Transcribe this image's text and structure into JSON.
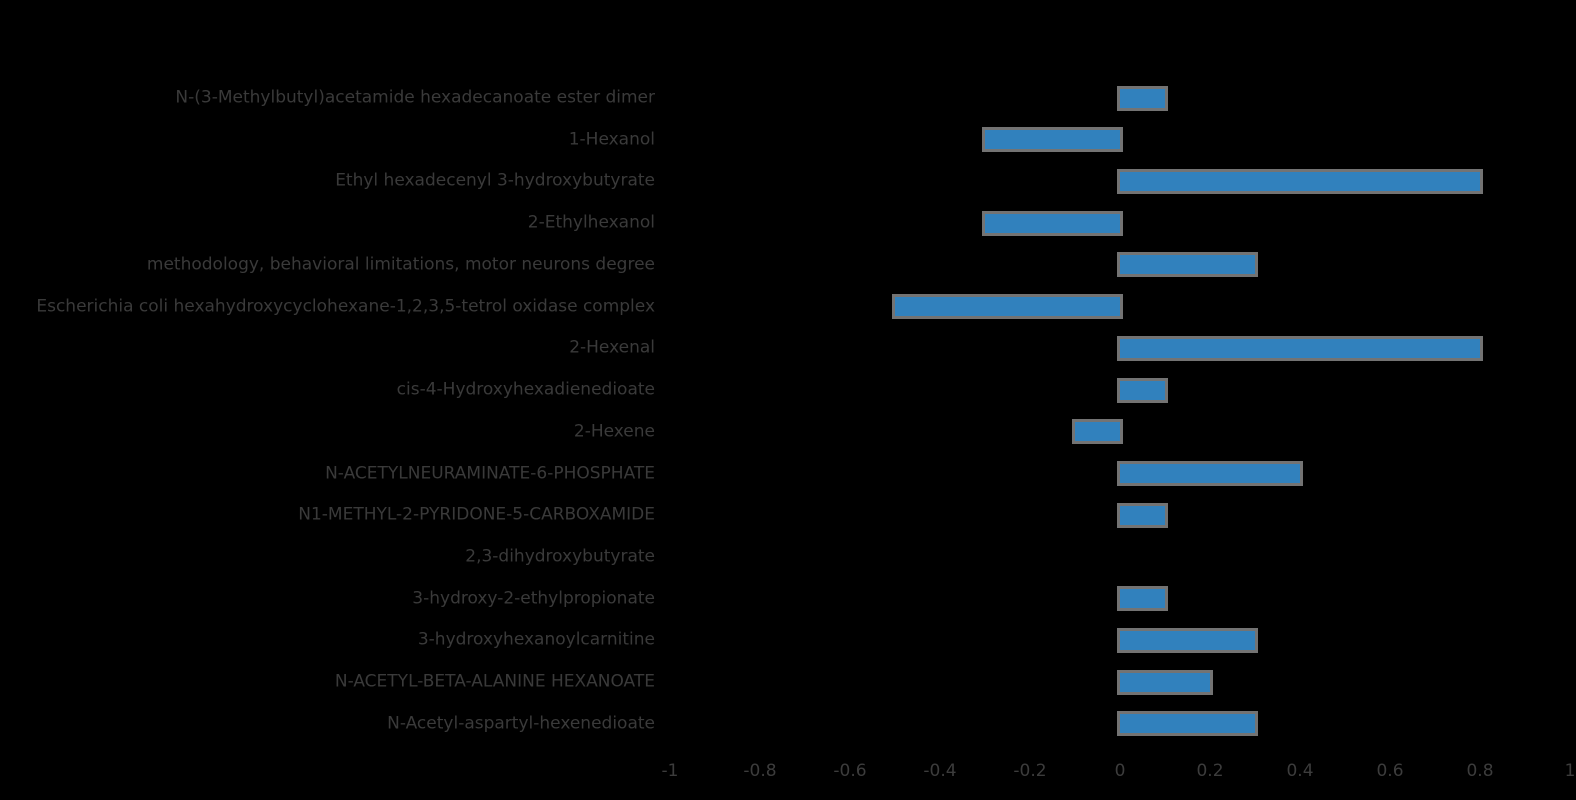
{
  "colors": {
    "background": "#000000",
    "bar_fill": "#3181bd",
    "bar_edge": "#737373",
    "label_text": "#3a3a3a",
    "tick_text": "#3c3c3c"
  },
  "chart_data": {
    "type": "bar",
    "orientation": "horizontal",
    "title": "",
    "xlabel": "",
    "ylabel": "",
    "xlim": [
      -1,
      1
    ],
    "grid": false,
    "legend": null,
    "x_tick_labels": [
      "-1",
      "-0.8",
      "-0.6",
      "-0.4",
      "-0.2",
      "0",
      "0.2",
      "0.4",
      "0.6",
      "0.8",
      "1"
    ],
    "categories": [
      "N-(3-Methylbutyl)acetamide hexadecanoate ester dimer",
      "1-Hexanol",
      "Ethyl hexadecenyl 3-hydroxybutyrate",
      "2-Ethylhexanol",
      "methodology, behavioral limitations, motor neurons degree",
      "Escherichia coli hexahydroxycyclohexane-1,2,3,5-tetrol oxidase complex",
      "2-Hexenal",
      "cis-4-Hydroxyhexadienedioate",
      "2-Hexene",
      "N-ACETYLNEURAMINATE-6-PHOSPHATE",
      "N1-METHYL-2-PYRIDONE-5-CARBOXAMIDE",
      "2,3-dihydroxybutyrate",
      "3-hydroxy-2-ethylpropionate",
      "3-hydroxyhexanoylcarnitine",
      "N-ACETYL-BETA-ALANINE HEXANOATE",
      "N-Acetyl-aspartyl-hexenedioate"
    ],
    "values": [
      0.1,
      -0.3,
      0.8,
      -0.3,
      0.3,
      -0.5,
      0.8,
      0.1,
      -0.1,
      0.4,
      0.1,
      0,
      0.1,
      0.3,
      0.2,
      0.3
    ]
  }
}
